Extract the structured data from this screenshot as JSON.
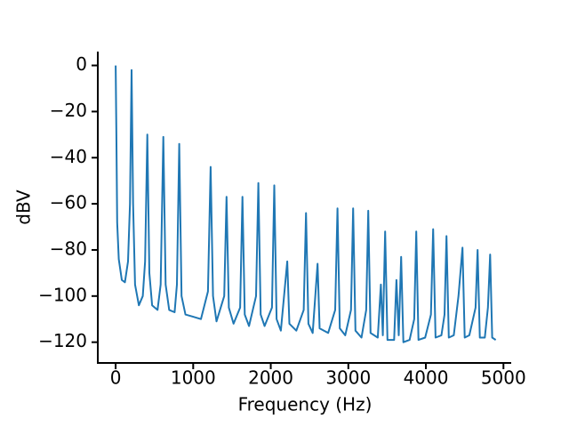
{
  "chart_data": {
    "type": "line",
    "xlabel": "Frequency (Hz)",
    "ylabel": "dBV",
    "xlim": [
      -230,
      5100
    ],
    "ylim": [
      -129,
      6
    ],
    "xticks": [
      0,
      1000,
      2000,
      3000,
      4000,
      5000
    ],
    "yticks": [
      0,
      {
        "value": -20,
        "label": "−20"
      },
      {
        "value": -40,
        "label": "−40"
      },
      {
        "value": -60,
        "label": "−60"
      },
      {
        "value": -80,
        "label": "−80"
      },
      {
        "value": -100,
        "label": "−100"
      },
      {
        "value": -120,
        "label": "−120"
      }
    ],
    "grid": false,
    "series": [
      {
        "color": "#1f77b4",
        "x": [
          0,
          10,
          20,
          40,
          80,
          120,
          160,
          185,
          206,
          225,
          250,
          300,
          350,
          380,
          408,
          435,
          470,
          540,
          580,
          615,
          645,
          690,
          760,
          790,
          820,
          850,
          900,
          1000,
          1100,
          1190,
          1225,
          1255,
          1300,
          1400,
          1430,
          1460,
          1520,
          1605,
          1635,
          1665,
          1720,
          1810,
          1840,
          1870,
          1920,
          2015,
          2045,
          2075,
          2130,
          2213,
          2240,
          2330,
          2425,
          2455,
          2485,
          2540,
          2603,
          2630,
          2740,
          2830,
          2860,
          2890,
          2960,
          3035,
          3062,
          3092,
          3170,
          3230,
          3257,
          3287,
          3380,
          3420,
          3445,
          3475,
          3505,
          3590,
          3620,
          3650,
          3681,
          3710,
          3790,
          3850,
          3876,
          3905,
          3990,
          4065,
          4094,
          4125,
          4200,
          4240,
          4266,
          4295,
          4360,
          4420,
          4472,
          4500,
          4560,
          4640,
          4667,
          4695,
          4760,
          4800,
          4828,
          4855,
          4900
        ],
        "values": [
          0,
          -30,
          -68,
          -84,
          -93,
          -94,
          -85,
          -60,
          -2,
          -60,
          -95,
          -104,
          -100,
          -85,
          -30,
          -90,
          -104,
          -106,
          -95,
          -31,
          -95,
          -106,
          -107,
          -95,
          -34,
          -100,
          -108,
          -109,
          -110,
          -98,
          -44,
          -100,
          -111,
          -100,
          -57,
          -105,
          -112,
          -105,
          -57,
          -108,
          -113,
          -100,
          -51,
          -108,
          -113,
          -105,
          -52,
          -110,
          -115,
          -85,
          -112,
          -115,
          -106,
          -64,
          -112,
          -116,
          -86,
          -114,
          -116,
          -106,
          -62,
          -114,
          -117,
          -106,
          -62,
          -115,
          -118,
          -106,
          -63,
          -116,
          -118,
          -95,
          -117,
          -72,
          -119,
          -119,
          -93,
          -117,
          -83,
          -120,
          -119,
          -110,
          -72,
          -119,
          -118,
          -108,
          -71,
          -118,
          -117,
          -108,
          -74,
          -118,
          -117,
          -100,
          -79,
          -118,
          -117,
          -105,
          -80,
          -118,
          -118,
          -105,
          -82,
          -118,
          -119
        ]
      }
    ]
  }
}
